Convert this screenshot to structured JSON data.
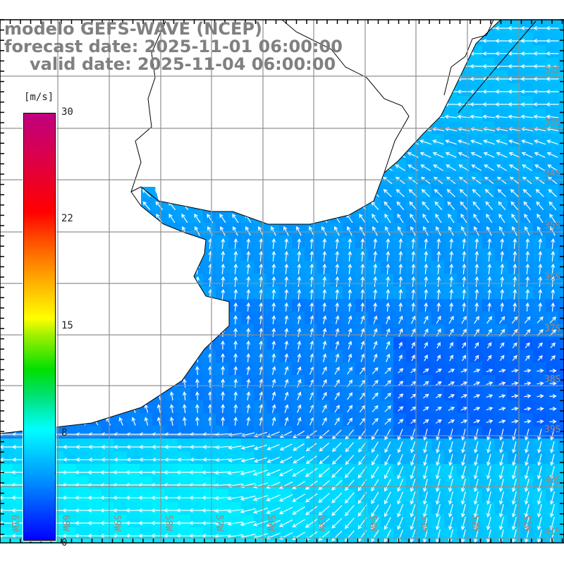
{
  "title": {
    "model": "modelo GEFS-WAVE (NCEP)",
    "forecast": "forecast date: 2025-11-01 06:00:00",
    "valid": "valid date: 2025-11-04 06:00:00"
  },
  "colorbar": {
    "unit": "[m/s]",
    "ticks": [
      "30",
      "22",
      "15",
      "8",
      "0"
    ],
    "tick_values": [
      30,
      22,
      15,
      8,
      0
    ]
  },
  "axes": {
    "lon_labels": [
      "61W",
      "60W",
      "59W",
      "58W",
      "57W",
      "56W",
      "55W",
      "54W",
      "53W",
      "52W",
      "51W"
    ],
    "lat_labels": [
      "32S",
      "33S",
      "34S",
      "35S",
      "36S",
      "37S",
      "38S",
      "39S",
      "40S",
      "41S"
    ]
  },
  "colors": {
    "label": "#a08878",
    "grid": "#909090",
    "land": "#ffffff",
    "coast": "#000000"
  }
}
